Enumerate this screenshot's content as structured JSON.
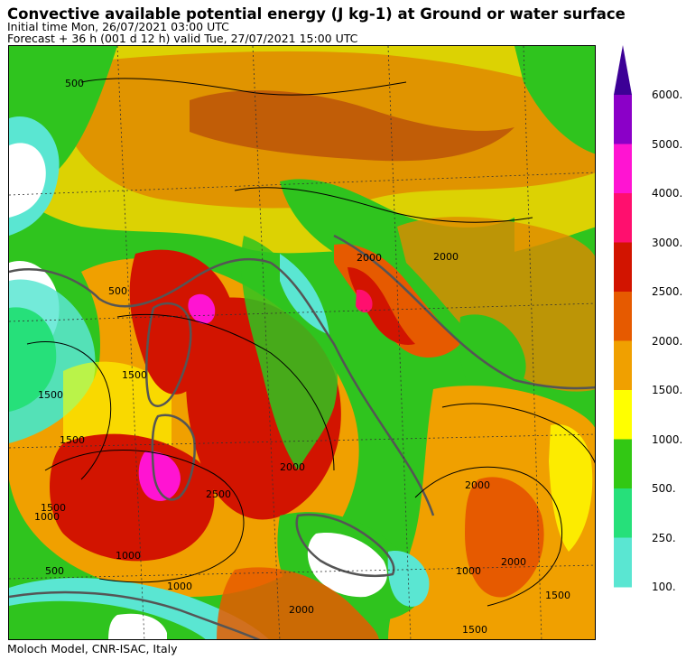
{
  "header": {
    "title": "Convective available potential energy (J kg-1) at Ground or water surface",
    "initial_time": "Initial time  Mon, 26/07/2021  03:00 UTC",
    "forecast": "Forecast  +  36 h  (001 d 12 h)  valid Tue, 27/07/2021 15:00 UTC"
  },
  "footer": {
    "credit": "Moloch Model, CNR-ISAC, Italy"
  },
  "map": {
    "contour_labels": [
      "500",
      "1500",
      "1500",
      "2000",
      "2000",
      "1500",
      "1500",
      "1000",
      "500",
      "2000",
      "1500",
      "1000",
      "2000",
      "1500",
      "2000",
      "2000",
      "1000",
      "2500",
      "1000",
      "500"
    ]
  },
  "legend": {
    "levels": [
      {
        "label": "6000.",
        "color": "#8b00c8"
      },
      {
        "label": "5000.",
        "color": "#ff14d2"
      },
      {
        "label": "4000.",
        "color": "#ff0f6e"
      },
      {
        "label": "3000.",
        "color": "#d21400"
      },
      {
        "label": "2500.",
        "color": "#e65a00"
      },
      {
        "label": "2000.",
        "color": "#f0a000"
      },
      {
        "label": "1500.",
        "color": "#ffff00"
      },
      {
        "label": "1000.",
        "color": "#32c814"
      },
      {
        "label": "500.",
        "color": "#26e07a"
      },
      {
        "label": "250.",
        "color": "#5ae6d2"
      },
      {
        "label": "100.",
        "color": ""
      }
    ],
    "arrow_color": "#3c0096"
  }
}
